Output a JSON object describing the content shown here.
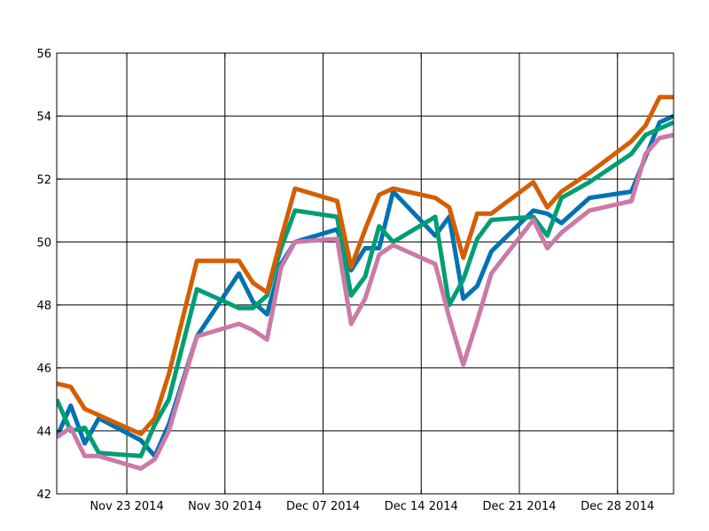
{
  "chart_data": {
    "type": "line",
    "title": "",
    "xlabel": "",
    "ylabel": "",
    "x_axis": "date",
    "xlim": [
      "2014-11-18",
      "2015-01-01"
    ],
    "ylim": [
      42,
      56
    ],
    "grid": true,
    "legend": "none",
    "yticks": [
      42,
      44,
      46,
      48,
      50,
      52,
      54,
      56
    ],
    "xticks": [
      {
        "date": "2014-11-23",
        "label": "Nov 23 2014"
      },
      {
        "date": "2014-11-30",
        "label": "Nov 30 2014"
      },
      {
        "date": "2014-12-07",
        "label": "Dec 07 2014"
      },
      {
        "date": "2014-12-14",
        "label": "Dec 14 2014"
      },
      {
        "date": "2014-12-21",
        "label": "Dec 21 2014"
      },
      {
        "date": "2014-12-28",
        "label": "Dec 28 2014"
      }
    ],
    "x": [
      "2014-11-18",
      "2014-11-19",
      "2014-11-20",
      "2014-11-21",
      "2014-11-24",
      "2014-11-25",
      "2014-11-26",
      "2014-11-28",
      "2014-12-01",
      "2014-12-02",
      "2014-12-03",
      "2014-12-04",
      "2014-12-05",
      "2014-12-08",
      "2014-12-09",
      "2014-12-10",
      "2014-12-11",
      "2014-12-12",
      "2014-12-15",
      "2014-12-16",
      "2014-12-17",
      "2014-12-18",
      "2014-12-19",
      "2014-12-22",
      "2014-12-23",
      "2014-12-24",
      "2014-12-26",
      "2014-12-29",
      "2014-12-30",
      "2014-12-31",
      "2015-01-01"
    ],
    "series": [
      {
        "color": "#0072B2",
        "values": [
          43.8,
          44.8,
          43.6,
          44.4,
          43.7,
          43.2,
          44.2,
          47.0,
          49.0,
          48.1,
          47.7,
          49.3,
          50.0,
          50.4,
          49.1,
          49.8,
          49.8,
          51.6,
          50.2,
          50.8,
          48.2,
          48.6,
          49.7,
          51.0,
          50.9,
          50.6,
          51.4,
          51.6,
          52.7,
          53.8,
          54.0
        ]
      },
      {
        "color": "#009E73",
        "values": [
          45.0,
          44.0,
          44.1,
          43.3,
          43.2,
          44.2,
          45.0,
          48.5,
          47.9,
          47.9,
          48.3,
          49.8,
          51.0,
          50.8,
          48.3,
          48.9,
          50.5,
          50.0,
          50.8,
          48.0,
          48.8,
          50.1,
          50.7,
          50.8,
          50.2,
          51.4,
          51.9,
          52.8,
          53.4,
          53.6,
          53.8
        ]
      },
      {
        "color": "#D55E00",
        "values": [
          45.5,
          45.4,
          44.7,
          44.5,
          43.9,
          44.4,
          45.8,
          49.4,
          49.4,
          48.7,
          48.4,
          50.1,
          51.7,
          51.3,
          49.2,
          50.4,
          51.5,
          51.7,
          51.4,
          51.1,
          49.5,
          50.9,
          50.9,
          51.9,
          51.1,
          51.6,
          52.2,
          53.2,
          53.7,
          54.6,
          54.6
        ]
      },
      {
        "color": "#CC79A7",
        "values": [
          43.8,
          44.1,
          43.2,
          43.2,
          42.8,
          43.1,
          44.0,
          47.0,
          47.4,
          47.2,
          46.9,
          49.2,
          50.0,
          50.1,
          47.4,
          48.2,
          49.6,
          49.9,
          49.3,
          47.6,
          46.1,
          47.5,
          49.0,
          50.7,
          49.8,
          50.3,
          51.0,
          51.3,
          52.8,
          53.3,
          53.4
        ]
      }
    ]
  }
}
